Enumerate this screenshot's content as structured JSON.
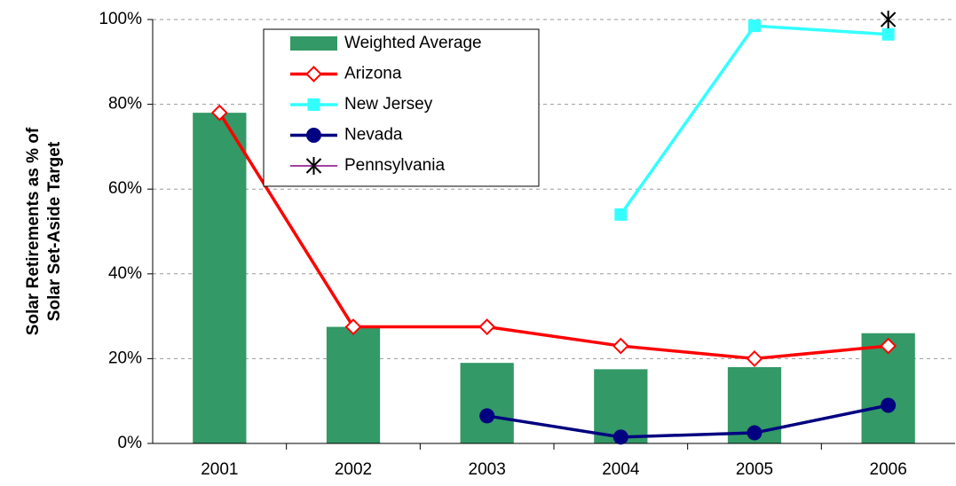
{
  "chart_data": {
    "type": "bar",
    "y_label": [
      "Solar Retirements as % of",
      "Solar Set-Aside Target"
    ],
    "categories": [
      "2001",
      "2002",
      "2003",
      "2004",
      "2005",
      "2006"
    ],
    "series": [
      {
        "name": "Weighted Average",
        "kind": "bar",
        "color": "#339966",
        "values": [
          78,
          27.5,
          19,
          17.5,
          18,
          26
        ]
      },
      {
        "name": "Arizona",
        "kind": "line",
        "marker": "diamond",
        "color": "#ff0000",
        "marker_color": "#ffffff",
        "values": [
          78,
          27.5,
          27.5,
          23,
          20,
          23
        ]
      },
      {
        "name": "New Jersey",
        "kind": "line",
        "marker": "square",
        "color": "#33ffff",
        "marker_color": "#33ffff",
        "values": [
          null,
          null,
          null,
          54,
          98.5,
          96.5
        ]
      },
      {
        "name": "Nevada",
        "kind": "line",
        "marker": "circle",
        "color": "#000080",
        "marker_color": "#000080",
        "values": [
          null,
          null,
          6.5,
          1.5,
          2.5,
          9
        ]
      },
      {
        "name": "Pennsylvania",
        "kind": "line",
        "marker": "asterisk",
        "color": "#800080",
        "marker_color": "#000000",
        "values": [
          null,
          null,
          null,
          null,
          null,
          100
        ]
      }
    ],
    "ylim": [
      0,
      100
    ],
    "yticks": [
      {
        "value": 0,
        "label": "0%"
      },
      {
        "value": 20,
        "label": "20%"
      },
      {
        "value": 40,
        "label": "40%"
      },
      {
        "value": 60,
        "label": "60%"
      },
      {
        "value": 80,
        "label": "80%"
      },
      {
        "value": 100,
        "label": "100%"
      }
    ],
    "grid": true
  }
}
